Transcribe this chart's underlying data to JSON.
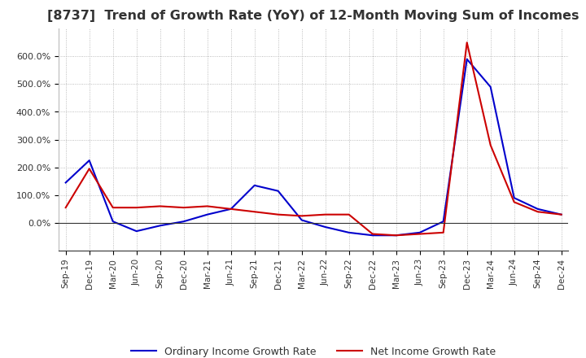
{
  "title": "[8737]  Trend of Growth Rate (YoY) of 12-Month Moving Sum of Incomes",
  "title_fontsize": 11.5,
  "ylim": [
    -100,
    700
  ],
  "yticks": [
    0,
    100,
    200,
    300,
    400,
    500,
    600
  ],
  "ytick_labels": [
    "0.0%",
    "100.0%",
    "200.0%",
    "300.0%",
    "400.0%",
    "500.0%",
    "600.0%"
  ],
  "background_color": "#ffffff",
  "grid_color": "#aaaaaa",
  "line_color_ordinary": "#0000cc",
  "line_color_net": "#cc0000",
  "legend_ordinary": "Ordinary Income Growth Rate",
  "legend_net": "Net Income Growth Rate",
  "dates": [
    "Sep-19",
    "Dec-19",
    "Mar-20",
    "Jun-20",
    "Sep-20",
    "Dec-20",
    "Mar-21",
    "Jun-21",
    "Sep-21",
    "Dec-21",
    "Mar-22",
    "Jun-22",
    "Sep-22",
    "Dec-22",
    "Mar-23",
    "Jun-23",
    "Sep-23",
    "Dec-23",
    "Mar-24",
    "Jun-24",
    "Sep-24",
    "Dec-24"
  ],
  "ordinary_income_growth": [
    145,
    225,
    5,
    -30,
    -10,
    5,
    30,
    50,
    135,
    115,
    10,
    -15,
    -35,
    -45,
    -45,
    -35,
    5,
    590,
    490,
    90,
    50,
    30
  ],
  "net_income_growth": [
    55,
    195,
    55,
    55,
    60,
    55,
    60,
    50,
    40,
    30,
    25,
    30,
    30,
    -40,
    -45,
    -40,
    -35,
    650,
    280,
    75,
    40,
    30
  ]
}
